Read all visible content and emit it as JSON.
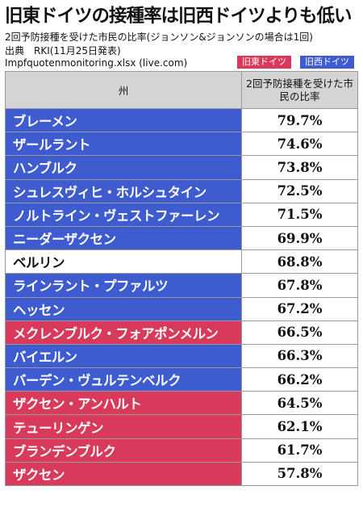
{
  "title": "旧東ドイツの接種率は旧西ドイツよりも低い",
  "subtitle": "2回予防接種を受けた市民の比率(ジョンソン&ジョンソンの場合は1回)",
  "source_line": "出典　RKI(11月25日発表)",
  "source_file": "Impfquotenmonitoring.xlsx (live.com)",
  "legend": {
    "east": {
      "label": "旧東ドイツ",
      "color": "#d9395a"
    },
    "west": {
      "label": "旧西ドイツ",
      "color": "#3e5ccf"
    }
  },
  "chart_data": {
    "type": "table",
    "columns": [
      "州",
      "2回予防接種を受けた市民の比率"
    ],
    "rows": [
      {
        "state": "ブレーメン",
        "value": "79.7%",
        "group": "west"
      },
      {
        "state": "ザールラント",
        "value": "74.6%",
        "group": "west"
      },
      {
        "state": "ハンブルク",
        "value": "73.8%",
        "group": "west"
      },
      {
        "state": "シュレスヴィヒ・ホルシュタイン",
        "value": "72.5%",
        "group": "west"
      },
      {
        "state": "ノルトライン・ヴェストファーレン",
        "value": "71.5%",
        "group": "west"
      },
      {
        "state": "ニーダーザクセン",
        "value": "69.9%",
        "group": "west"
      },
      {
        "state": "ベルリン",
        "value": "68.8%",
        "group": "berlin"
      },
      {
        "state": "ラインラント・プファルツ",
        "value": "67.8%",
        "group": "west"
      },
      {
        "state": "ヘッセン",
        "value": "67.2%",
        "group": "west"
      },
      {
        "state": "メクレンブルク・フォアポンメルン",
        "value": "66.5%",
        "group": "east"
      },
      {
        "state": "バイエルン",
        "value": "66.3%",
        "group": "west"
      },
      {
        "state": "バーデン・ヴュルテンベルク",
        "value": "66.2%",
        "group": "west"
      },
      {
        "state": "ザクセン・アンハルト",
        "value": "64.5%",
        "group": "east"
      },
      {
        "state": "テューリンゲン",
        "value": "62.1%",
        "group": "east"
      },
      {
        "state": "ブランデンブルク",
        "value": "61.7%",
        "group": "east"
      },
      {
        "state": "ザクセン",
        "value": "57.8%",
        "group": "east"
      }
    ]
  }
}
